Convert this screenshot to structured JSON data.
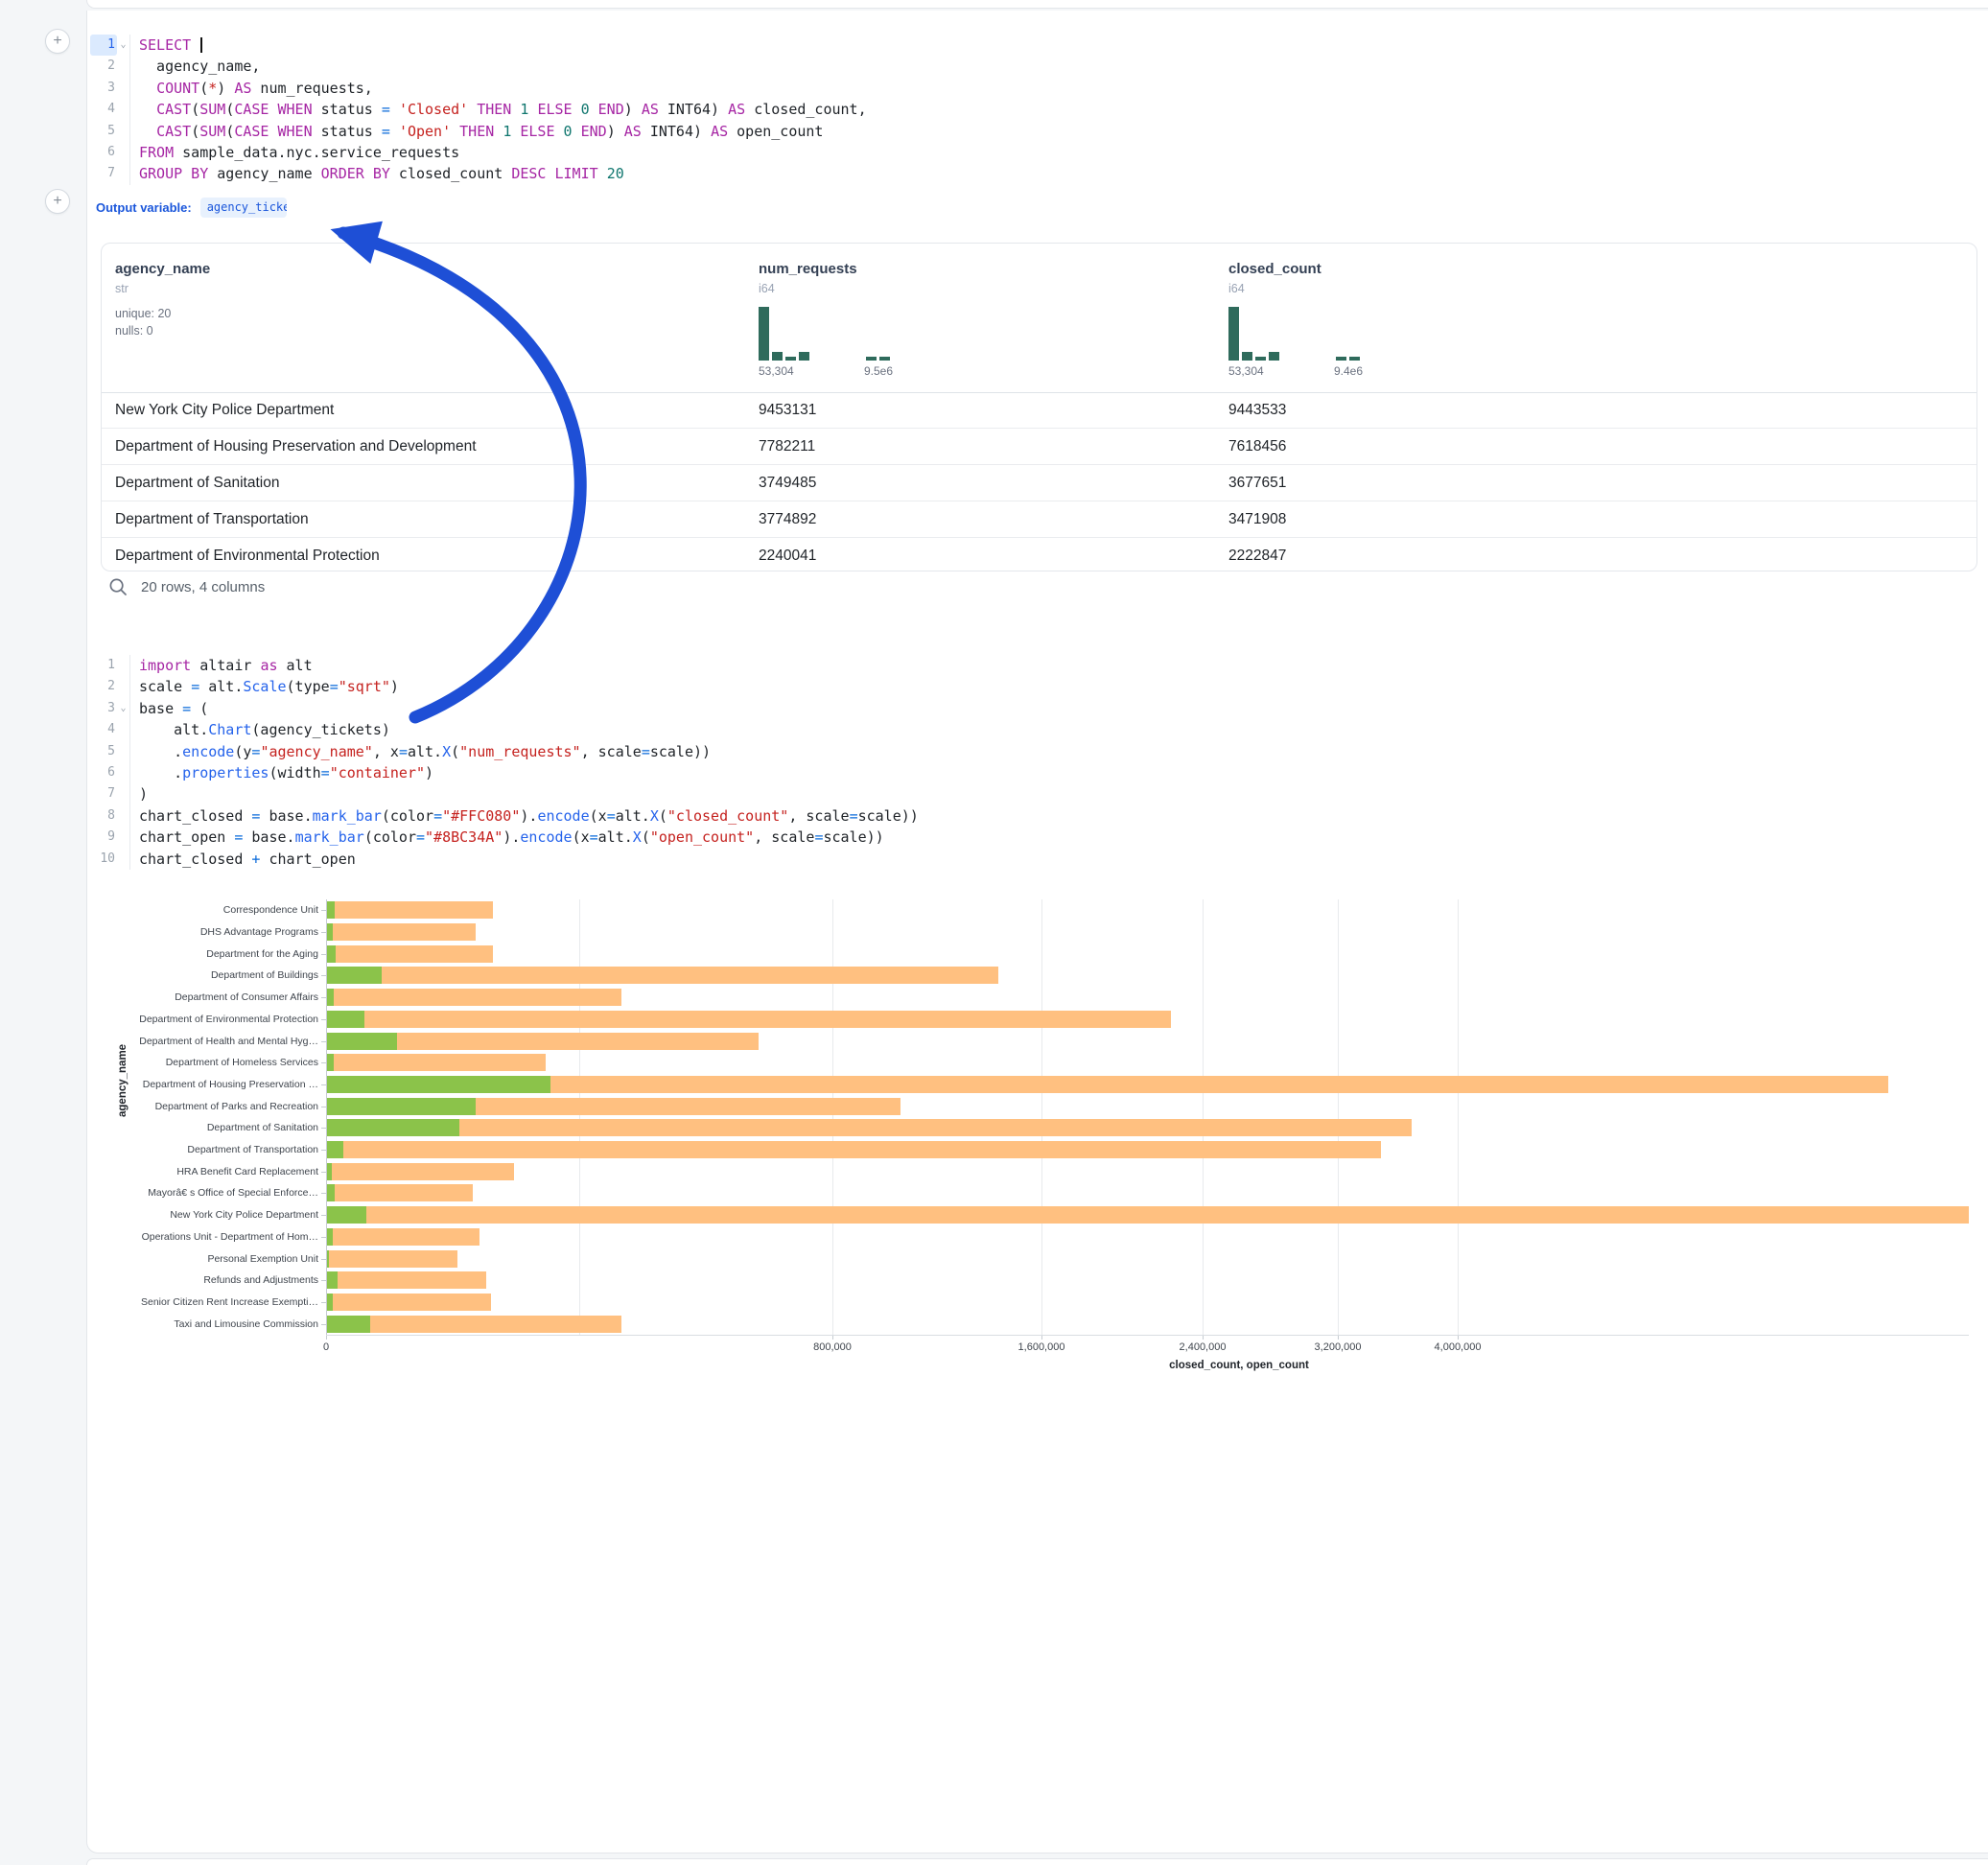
{
  "icons": {
    "fold": "⌄",
    "plus": "+"
  },
  "sql_cell": {
    "lines": [
      {
        "n": "1",
        "fold": true,
        "active": true,
        "caret": true,
        "tokens": [
          [
            "kw",
            "SELECT"
          ],
          [
            "p",
            " "
          ]
        ]
      },
      {
        "n": "2",
        "tokens": [
          [
            "p",
            "  agency_name,"
          ]
        ]
      },
      {
        "n": "3",
        "tokens": [
          [
            "p",
            "  "
          ],
          [
            "kw",
            "COUNT"
          ],
          [
            "p",
            "("
          ],
          [
            "str",
            "*"
          ],
          [
            "p",
            ") "
          ],
          [
            "kw",
            "AS"
          ],
          [
            "p",
            " num_requests,"
          ]
        ]
      },
      {
        "n": "4",
        "tokens": [
          [
            "p",
            "  "
          ],
          [
            "kw",
            "CAST"
          ],
          [
            "p",
            "("
          ],
          [
            "kw",
            "SUM"
          ],
          [
            "p",
            "("
          ],
          [
            "kw",
            "CASE"
          ],
          [
            "p",
            " "
          ],
          [
            "kw",
            "WHEN"
          ],
          [
            "p",
            " status "
          ],
          [
            "op",
            "="
          ],
          [
            "p",
            " "
          ],
          [
            "str",
            "'Closed'"
          ],
          [
            "p",
            " "
          ],
          [
            "kw",
            "THEN"
          ],
          [
            "p",
            " "
          ],
          [
            "num",
            "1"
          ],
          [
            "p",
            " "
          ],
          [
            "kw",
            "ELSE"
          ],
          [
            "p",
            " "
          ],
          [
            "num",
            "0"
          ],
          [
            "p",
            " "
          ],
          [
            "kw",
            "END"
          ],
          [
            "p",
            ") "
          ],
          [
            "kw",
            "AS"
          ],
          [
            "p",
            " INT64) "
          ],
          [
            "kw",
            "AS"
          ],
          [
            "p",
            " closed_count,"
          ]
        ]
      },
      {
        "n": "5",
        "tokens": [
          [
            "p",
            "  "
          ],
          [
            "kw",
            "CAST"
          ],
          [
            "p",
            "("
          ],
          [
            "kw",
            "SUM"
          ],
          [
            "p",
            "("
          ],
          [
            "kw",
            "CASE"
          ],
          [
            "p",
            " "
          ],
          [
            "kw",
            "WHEN"
          ],
          [
            "p",
            " status "
          ],
          [
            "op",
            "="
          ],
          [
            "p",
            " "
          ],
          [
            "str",
            "'Open'"
          ],
          [
            "p",
            " "
          ],
          [
            "kw",
            "THEN"
          ],
          [
            "p",
            " "
          ],
          [
            "num",
            "1"
          ],
          [
            "p",
            " "
          ],
          [
            "kw",
            "ELSE"
          ],
          [
            "p",
            " "
          ],
          [
            "num",
            "0"
          ],
          [
            "p",
            " "
          ],
          [
            "kw",
            "END"
          ],
          [
            "p",
            ") "
          ],
          [
            "kw",
            "AS"
          ],
          [
            "p",
            " INT64) "
          ],
          [
            "kw",
            "AS"
          ],
          [
            "p",
            " open_count"
          ]
        ]
      },
      {
        "n": "6",
        "tokens": [
          [
            "kw",
            "FROM"
          ],
          [
            "p",
            " sample_data.nyc.service_requests"
          ]
        ]
      },
      {
        "n": "7",
        "tokens": [
          [
            "kw",
            "GROUP BY"
          ],
          [
            "p",
            " agency_name "
          ],
          [
            "kw",
            "ORDER BY"
          ],
          [
            "p",
            " closed_count "
          ],
          [
            "kw",
            "DESC"
          ],
          [
            "p",
            " "
          ],
          [
            "kw",
            "LIMIT"
          ],
          [
            "p",
            " "
          ],
          [
            "num",
            "20"
          ]
        ]
      }
    ]
  },
  "output_variable": {
    "label": "Output variable:",
    "value": "agency_tickets"
  },
  "table": {
    "columns": [
      {
        "name": "agency_name",
        "type": "str",
        "stats": [
          "unique: 20",
          "nulls: 0"
        ]
      },
      {
        "name": "num_requests",
        "type": "i64",
        "hist": [
          13,
          2,
          1,
          2,
          0,
          0,
          0,
          0,
          1,
          1
        ],
        "range": [
          "53,304",
          "9.5e6"
        ]
      },
      {
        "name": "closed_count",
        "type": "i64",
        "hist": [
          13,
          2,
          1,
          2,
          0,
          0,
          0,
          0,
          1,
          1
        ],
        "range": [
          "53,304",
          "9.4e6"
        ]
      }
    ],
    "rows": [
      [
        "New York City Police Department",
        "9453131",
        "9443533"
      ],
      [
        "Department of Housing Preservation and Development",
        "7782211",
        "7618456"
      ],
      [
        "Department of Sanitation",
        "3749485",
        "3677651"
      ],
      [
        "Department of Transportation",
        "3774892",
        "3471908"
      ],
      [
        "Department of Environmental Protection",
        "2240041",
        "2222847"
      ]
    ],
    "footer": "20 rows, 4 columns"
  },
  "python_cell": {
    "lines": [
      {
        "n": "1",
        "tokens": [
          [
            "kw",
            "import"
          ],
          [
            "p",
            " altair "
          ],
          [
            "kw",
            "as"
          ],
          [
            "p",
            " alt"
          ]
        ]
      },
      {
        "n": "2",
        "tokens": [
          [
            "p",
            "scale "
          ],
          [
            "op",
            "="
          ],
          [
            "p",
            " alt."
          ],
          [
            "fn",
            "Scale"
          ],
          [
            "p",
            "(type"
          ],
          [
            "op",
            "="
          ],
          [
            "str",
            "\"sqrt\""
          ],
          [
            "p",
            ")"
          ]
        ]
      },
      {
        "n": "3",
        "fold": true,
        "tokens": [
          [
            "p",
            "base "
          ],
          [
            "op",
            "="
          ],
          [
            "p",
            " ("
          ]
        ]
      },
      {
        "n": "4",
        "tokens": [
          [
            "p",
            "    alt."
          ],
          [
            "fn",
            "Chart"
          ],
          [
            "p",
            "(agency_tickets)"
          ]
        ]
      },
      {
        "n": "5",
        "tokens": [
          [
            "p",
            "    ."
          ],
          [
            "fn",
            "encode"
          ],
          [
            "p",
            "(y"
          ],
          [
            "op",
            "="
          ],
          [
            "str",
            "\"agency_name\""
          ],
          [
            "p",
            ", x"
          ],
          [
            "op",
            "="
          ],
          [
            "p",
            "alt."
          ],
          [
            "fn",
            "X"
          ],
          [
            "p",
            "("
          ],
          [
            "str",
            "\"num_requests\""
          ],
          [
            "p",
            ", scale"
          ],
          [
            "op",
            "="
          ],
          [
            "p",
            "scale))"
          ]
        ]
      },
      {
        "n": "6",
        "tokens": [
          [
            "p",
            "    ."
          ],
          [
            "fn",
            "properties"
          ],
          [
            "p",
            "(width"
          ],
          [
            "op",
            "="
          ],
          [
            "str",
            "\"container\""
          ],
          [
            "p",
            ")"
          ]
        ]
      },
      {
        "n": "7",
        "tokens": [
          [
            "p",
            ")"
          ]
        ]
      },
      {
        "n": "8",
        "tokens": [
          [
            "p",
            "chart_closed "
          ],
          [
            "op",
            "="
          ],
          [
            "p",
            " base."
          ],
          [
            "fn",
            "mark_bar"
          ],
          [
            "p",
            "(color"
          ],
          [
            "op",
            "="
          ],
          [
            "str",
            "\"#FFC080\""
          ],
          [
            "p",
            ")."
          ],
          [
            "fn",
            "encode"
          ],
          [
            "p",
            "(x"
          ],
          [
            "op",
            "="
          ],
          [
            "p",
            "alt."
          ],
          [
            "fn",
            "X"
          ],
          [
            "p",
            "("
          ],
          [
            "str",
            "\"closed_count\""
          ],
          [
            "p",
            ", scale"
          ],
          [
            "op",
            "="
          ],
          [
            "p",
            "scale))"
          ]
        ]
      },
      {
        "n": "9",
        "tokens": [
          [
            "p",
            "chart_open "
          ],
          [
            "op",
            "="
          ],
          [
            "p",
            " base."
          ],
          [
            "fn",
            "mark_bar"
          ],
          [
            "p",
            "(color"
          ],
          [
            "op",
            "="
          ],
          [
            "str",
            "\"#8BC34A\""
          ],
          [
            "p",
            ")."
          ],
          [
            "fn",
            "encode"
          ],
          [
            "p",
            "(x"
          ],
          [
            "op",
            "="
          ],
          [
            "p",
            "alt."
          ],
          [
            "fn",
            "X"
          ],
          [
            "p",
            "("
          ],
          [
            "str",
            "\"open_count\""
          ],
          [
            "p",
            ", scale"
          ],
          [
            "op",
            "="
          ],
          [
            "p",
            "scale))"
          ]
        ]
      },
      {
        "n": "10",
        "tokens": [
          [
            "p",
            "chart_closed "
          ],
          [
            "op",
            "+"
          ],
          [
            "p",
            " chart_open"
          ]
        ]
      }
    ]
  },
  "chart_data": {
    "type": "bar",
    "orientation": "horizontal",
    "x_scale": "sqrt",
    "xlabel": "closed_count, open_count",
    "ylabel": "agency_name",
    "categories": [
      "Correspondence Unit",
      "DHS Advantage Programs",
      "Department for the Aging",
      "Department of Buildings",
      "Department of Consumer Affairs",
      "Department of Environmental Protection",
      "Department of Health and Mental Hyg…",
      "Department of Homeless Services",
      "Department of Housing Preservation …",
      "Department of Parks and Recreation",
      "Department of Sanitation",
      "Department of Transportation",
      "HRA Benefit Card Replacement",
      "Mayorâ€ s Office of Special Enforce…",
      "New York City Police Department",
      "Operations Unit - Department of Hom…",
      "Personal Exemption Unit",
      "Refunds and Adjustments",
      "Senior Citizen Rent Increase Exempti…",
      "Taxi and Limousine Commission"
    ],
    "series": [
      {
        "name": "closed_count",
        "color": "#FFC080",
        "values": [
          86000,
          69000,
          86000,
          1407000,
          271000,
          2222847,
          582000,
          149000,
          7618456,
          1028000,
          3677651,
          3471908,
          109000,
          66000,
          9443533,
          72600,
          53304,
          79000,
          84000,
          271000
        ]
      },
      {
        "name": "open_count",
        "color": "#8BC34A",
        "values": [
          200,
          120,
          250,
          9400,
          150,
          4400,
          15300,
          130,
          156000,
          69000,
          54700,
          830,
          60,
          180,
          4800,
          100,
          15,
          320,
          90,
          5800
        ]
      }
    ],
    "x_ticks": [
      {
        "v": 0,
        "label": "0"
      },
      {
        "v": 800000,
        "label": "800,000"
      },
      {
        "v": 1600000,
        "label": "1,600,000"
      },
      {
        "v": 2400000,
        "label": "2,400,000"
      },
      {
        "v": 3200000,
        "label": "3,200,000"
      },
      {
        "v": 4000000,
        "label": "4,000,000"
      }
    ],
    "x_minor_grid": [
      200000
    ],
    "x_domain": [
      0,
      9443533
    ],
    "grid": true,
    "legend_position": "none"
  },
  "annotation": {
    "arrow_color": "#1e4fd6"
  }
}
